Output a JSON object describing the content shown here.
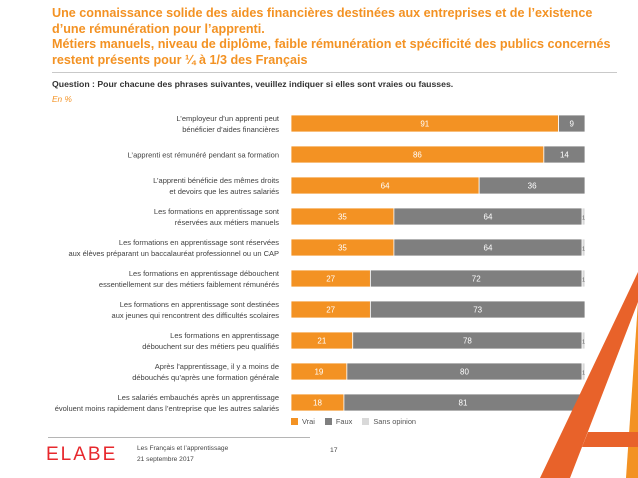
{
  "title": {
    "line1": "Une connaissance solide des aides financières destinées aux entreprises et de l’existence",
    "line2": "d’une rémunération pour l’apprenti.",
    "line3": "Métiers manuels, niveau de diplôme, faible rémunération et spécificité des publics concernés",
    "line4": "restent présents pour ¼ à 1/3 des Français"
  },
  "question": "Question : Pour chacune des phrases suivantes, veuillez indiquer si elles sont vraies ou fausses.",
  "unit": "En %",
  "colors": {
    "vrai": "#f39223",
    "faux": "#7f7f7f",
    "sans_opinion": "#d9d9d9",
    "title": "#f39223"
  },
  "chart_data": {
    "type": "bar",
    "orientation": "horizontal",
    "stacked": true,
    "xlim": [
      0,
      100
    ],
    "categories": [
      [
        "L’employeur d’un apprenti peut",
        "bénéficier d’aides financières"
      ],
      [
        "L’apprenti est rémunéré pendant sa formation"
      ],
      [
        "L’apprenti bénéficie des mêmes droits",
        "et devoirs que les autres salariés"
      ],
      [
        "Les formations en apprentissage sont",
        "réservées aux métiers manuels"
      ],
      [
        "Les formations en apprentissage sont réservées",
        "aux élèves préparant un baccalauréat professionnel ou un CAP"
      ],
      [
        "Les formations en apprentissage débouchent",
        "essentiellement sur des métiers faiblement rémunérés"
      ],
      [
        "Les formations en apprentissage sont destinées",
        "aux jeunes qui rencontrent des difficultés scolaires"
      ],
      [
        "Les formations en apprentissage",
        "débouchent sur des métiers peu qualifiés"
      ],
      [
        "Après l’apprentissage, il y a moins de",
        "débouchés qu’après une formation générale"
      ],
      [
        "Les salariés embauchés après un apprentissage",
        "évoluent moins rapidement dans l’entreprise que les autres salariés"
      ]
    ],
    "series": [
      {
        "name": "Vrai",
        "values": [
          91,
          86,
          64,
          35,
          35,
          27,
          27,
          21,
          19,
          18
        ]
      },
      {
        "name": "Faux",
        "values": [
          9,
          14,
          36,
          64,
          64,
          72,
          73,
          78,
          80,
          81
        ]
      },
      {
        "name": "Sans opinion",
        "values": [
          null,
          null,
          null,
          1,
          1,
          1,
          null,
          1,
          1,
          1
        ]
      }
    ],
    "legend_position": "bottom"
  },
  "footer": {
    "logo": "ELABE",
    "line1": "Les Français et l’apprentissage",
    "line2": "21 septembre 2017",
    "page": "17"
  }
}
